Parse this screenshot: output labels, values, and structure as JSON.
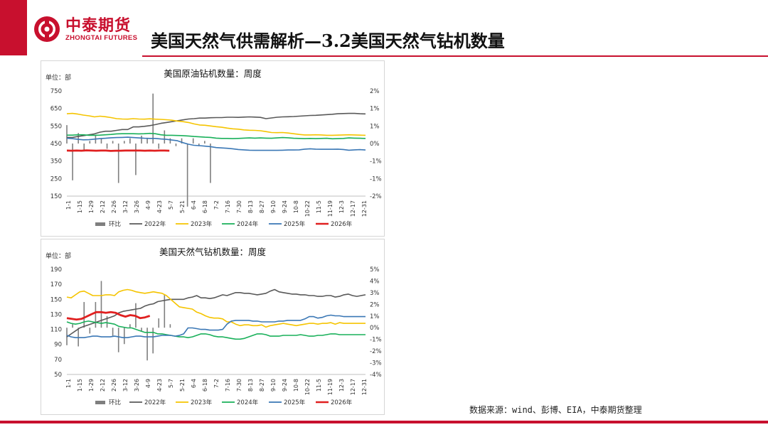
{
  "brand": {
    "name_cn": "中泰期货",
    "name_en": "ZHONGTAI FUTURES"
  },
  "page_title": "美国天然气供需解析—3.2美国天然气钻机数量",
  "source_note": "数据来源：wind、彭博、EIA，中泰期货整理",
  "colors": {
    "accent": "#c8102e",
    "wow": "#7f7f7f",
    "y2022": "#595959",
    "y2023": "#f5c400",
    "y2024": "#19b05a",
    "y2025": "#3a77b5",
    "y2026": "#e02020"
  },
  "chart_data": [
    {
      "type": "line",
      "title": "美国原油钻机数量：周度",
      "unit_label": "单位：部",
      "ylim": [
        150,
        750
      ],
      "yticks": [
        "750",
        "650",
        "550",
        "450",
        "350",
        "250",
        "150"
      ],
      "y2lim": [
        -2,
        2
      ],
      "y2ticks": [
        "2%",
        "1%",
        "1%",
        "0%",
        "-1%",
        "-1%",
        "-2%"
      ],
      "x_tick_labels": [
        "1-1",
        "1-15",
        "1-29",
        "2-12",
        "2-26",
        "3-12",
        "3-26",
        "4-9",
        "4-23",
        "5-7",
        "5-21",
        "6-4",
        "6-18",
        "7-2",
        "7-16",
        "7-30",
        "8-13",
        "8-27",
        "9-10",
        "9-24",
        "10-8",
        "10-22",
        "11-5",
        "11-19",
        "12-3",
        "12-17",
        "12-31"
      ],
      "legend": [
        "环比",
        "2022年",
        "2023年",
        "2024年",
        "2025年",
        "2026年"
      ],
      "series": [
        {
          "name": "2022年",
          "values": [
            485,
            485,
            490,
            495,
            500,
            505,
            515,
            520,
            520,
            525,
            530,
            530,
            545,
            545,
            548,
            552,
            558,
            565,
            570,
            575,
            580,
            585,
            590,
            592,
            595,
            595,
            597,
            598,
            598,
            600,
            600,
            599,
            601,
            602,
            601,
            599,
            592,
            596,
            600,
            602,
            603,
            604,
            606,
            608,
            610,
            611,
            613,
            615,
            617,
            620,
            621,
            622,
            622,
            620,
            619
          ]
        },
        {
          "name": "2023年",
          "values": [
            620,
            622,
            618,
            612,
            608,
            602,
            606,
            603,
            598,
            592,
            590,
            589,
            592,
            590,
            589,
            591,
            589,
            588,
            586,
            583,
            578,
            575,
            570,
            562,
            556,
            554,
            550,
            546,
            543,
            538,
            534,
            532,
            528,
            526,
            525,
            523,
            518,
            513,
            512,
            513,
            510,
            506,
            502,
            499,
            499,
            500,
            499,
            497,
            497,
            498,
            499,
            500,
            499,
            498,
            497
          ]
        },
        {
          "name": "2024年",
          "values": [
            498,
            498,
            500,
            500,
            497,
            497,
            498,
            500,
            502,
            505,
            506,
            506,
            506,
            505,
            506,
            508,
            506,
            500,
            497,
            497,
            496,
            495,
            493,
            490,
            488,
            486,
            485,
            481,
            479,
            479,
            478,
            479,
            481,
            482,
            481,
            482,
            481,
            480,
            482,
            484,
            483,
            480,
            479,
            478,
            479,
            478,
            479,
            480,
            477,
            478,
            479,
            482,
            481,
            480,
            479
          ]
        },
        {
          "name": "2025年",
          "values": [
            480,
            478,
            474,
            471,
            472,
            475,
            478,
            480,
            483,
            484,
            485,
            486,
            484,
            482,
            480,
            479,
            479,
            476,
            474,
            470,
            466,
            455,
            446,
            440,
            438,
            435,
            432,
            427,
            425,
            423,
            420,
            416,
            414,
            412,
            411,
            411,
            411,
            411,
            411,
            412,
            413,
            413,
            414,
            418,
            420,
            418,
            417,
            417,
            417,
            418,
            416,
            412,
            414,
            415,
            413
          ]
        },
        {
          "name": "2026年",
          "values": [
            410,
            409,
            410,
            409,
            411,
            410,
            409,
            410,
            410,
            408,
            409,
            409,
            410,
            410,
            410,
            410,
            409,
            410,
            409,
            410,
            410,
            409
          ]
        }
      ],
      "wow_pct": [
        0.7,
        -1.4,
        0.4,
        -0.3,
        0.1,
        0.3,
        0.2,
        -0.2,
        0.1,
        -1.5,
        0.1,
        0.2,
        -1.2,
        0.3,
        0.2,
        1.9,
        -0.2,
        0.5,
        0.2,
        -0.1,
        0.2,
        -2.4,
        0.2,
        -0.1,
        0.1,
        -1.5
      ]
    },
    {
      "type": "line",
      "title": "美国天然气钻机数量：周度",
      "unit_label": "单位：部",
      "ylim": [
        50,
        190
      ],
      "yticks": [
        "190",
        "170",
        "150",
        "130",
        "110",
        "90",
        "70",
        "50"
      ],
      "y2lim": [
        -4,
        5
      ],
      "y2ticks": [
        "5%",
        "4%",
        "3%",
        "2%",
        "1%",
        "0%",
        "-1%",
        "-2%",
        "-3%",
        "-4%"
      ],
      "x_tick_labels": [
        "1-1",
        "1-15",
        "1-29",
        "2-12",
        "2-26",
        "3-12",
        "3-26",
        "4-9",
        "4-23",
        "5-7",
        "5-21",
        "6-4",
        "6-18",
        "7-2",
        "7-16",
        "7-30",
        "8-13",
        "8-27",
        "9-10",
        "9-24",
        "10-8",
        "10-22",
        "11-5",
        "11-19",
        "12-3",
        "12-17",
        "12-31"
      ],
      "legend": [
        "环比",
        "2022年",
        "2023年",
        "2024年",
        "2025年",
        "2026年"
      ],
      "series": [
        {
          "name": "2022年",
          "values": [
            100,
            104,
            108,
            112,
            114,
            116,
            118,
            120,
            122,
            124,
            126,
            128,
            132,
            134,
            135,
            136,
            137,
            138,
            141,
            143,
            144,
            147,
            148,
            149,
            150,
            150,
            150,
            150,
            152,
            153,
            155,
            152,
            152,
            151,
            152,
            154,
            156,
            155,
            157,
            159,
            159,
            158,
            158,
            157,
            156,
            157,
            158,
            161,
            163,
            160,
            159,
            158,
            157,
            157,
            156,
            156,
            155,
            155,
            154,
            154,
            155,
            155,
            153,
            154,
            156,
            157,
            155,
            154,
            155,
            156
          ]
        },
        {
          "name": "2023年",
          "values": [
            153,
            152,
            156,
            160,
            161,
            158,
            155,
            155,
            155,
            156,
            156,
            155,
            160,
            162,
            163,
            162,
            160,
            159,
            158,
            159,
            160,
            159,
            158,
            155,
            150,
            145,
            140,
            139,
            138,
            137,
            133,
            131,
            128,
            126,
            125,
            125,
            124,
            120,
            120,
            117,
            115,
            116,
            116,
            115,
            115,
            116,
            113,
            115,
            116,
            117,
            118,
            117,
            116,
            115,
            116,
            117,
            118,
            118,
            117,
            118,
            118,
            119,
            117,
            119,
            118,
            118,
            118,
            118,
            118,
            118
          ]
        },
        {
          "name": "2024年",
          "values": [
            120,
            118,
            117,
            118,
            120,
            121,
            120,
            119,
            118,
            119,
            118,
            117,
            114,
            113,
            112,
            112,
            110,
            108,
            106,
            106,
            106,
            104,
            104,
            103,
            102,
            101,
            100,
            100,
            99,
            100,
            102,
            104,
            104,
            103,
            101,
            100,
            100,
            99,
            98,
            97,
            97,
            98,
            100,
            102,
            104,
            104,
            103,
            101,
            101,
            101,
            102,
            102,
            102,
            102,
            103,
            102,
            101,
            101,
            102,
            102,
            103,
            104,
            104,
            103,
            103,
            103,
            103,
            103,
            103,
            103
          ]
        },
        {
          "name": "2025年",
          "values": [
            102,
            100,
            99,
            99,
            99,
            100,
            101,
            101,
            100,
            100,
            100,
            101,
            100,
            99,
            99,
            100,
            101,
            101,
            100,
            100,
            100,
            101,
            102,
            102,
            102,
            101,
            102,
            104,
            112,
            112,
            111,
            110,
            110,
            109,
            109,
            109,
            110,
            117,
            121,
            122,
            122,
            122,
            122,
            121,
            121,
            120,
            120,
            120,
            120,
            121,
            121,
            122,
            122,
            122,
            122,
            124,
            127,
            127,
            125,
            126,
            128,
            129,
            128,
            128,
            127,
            127,
            127,
            127,
            127,
            127
          ]
        },
        {
          "name": "2026年",
          "values": [
            125,
            124,
            123,
            124,
            127,
            130,
            133,
            133,
            132,
            133,
            132,
            129,
            127,
            129,
            128,
            125,
            126,
            128
          ]
        }
      ],
      "wow_pct": [
        -1.5,
        0.3,
        -1.6,
        2.2,
        -0.5,
        2.2,
        4.0,
        1.0,
        -0.7,
        -2.1,
        -1.4,
        0.3,
        2.1,
        -0.3,
        -2.8,
        -2.2,
        0.8,
        2.8,
        0.3
      ]
    }
  ]
}
